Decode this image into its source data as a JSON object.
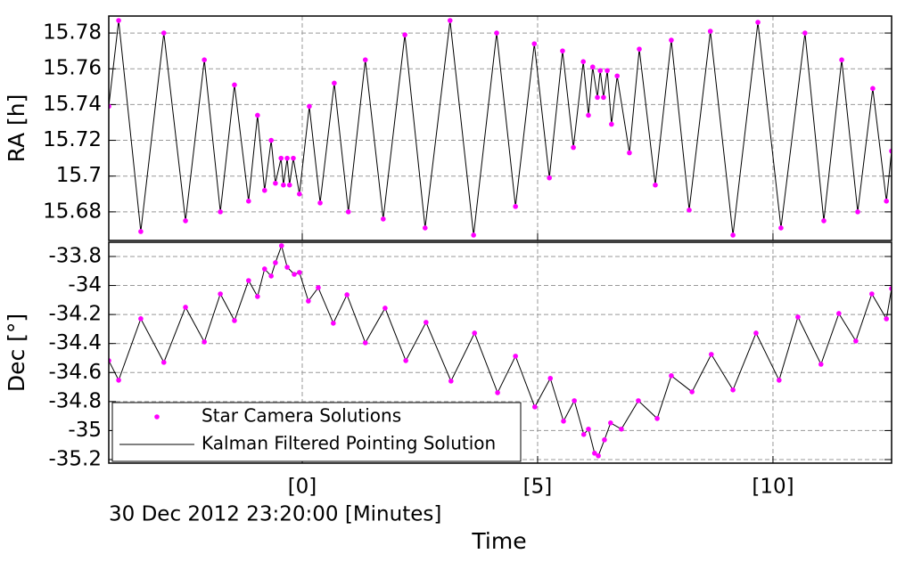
{
  "chart_data": [
    {
      "type": "line",
      "ylabel": "RA [h]",
      "x": [
        -4.11,
        -3.9,
        -3.43,
        -2.94,
        -2.48,
        -2.08,
        -1.74,
        -1.44,
        -1.14,
        -0.95,
        -0.8,
        -0.66,
        -0.57,
        -0.45,
        -0.4,
        -0.32,
        -0.27,
        -0.19,
        -0.06,
        0.15,
        0.38,
        0.68,
        0.98,
        1.34,
        1.72,
        2.18,
        2.61,
        3.14,
        3.64,
        4.13,
        4.53,
        4.93,
        5.25,
        5.53,
        5.76,
        5.97,
        6.08,
        6.17,
        6.27,
        6.33,
        6.4,
        6.48,
        6.57,
        6.69,
        6.95,
        7.16,
        7.5,
        7.84,
        8.22,
        8.67,
        9.15,
        9.68,
        10.17,
        10.68,
        11.08,
        11.46,
        11.8,
        12.12,
        12.41,
        12.52
      ],
      "series": [
        {
          "color": "#ff00ff",
          "style": "markers",
          "values": [
            15.739,
            15.787,
            15.669,
            15.78,
            15.675,
            15.765,
            15.68,
            15.751,
            15.686,
            15.734,
            15.692,
            15.72,
            15.696,
            15.71,
            15.695,
            15.71,
            15.695,
            15.71,
            15.69,
            15.739,
            15.685,
            15.752,
            15.68,
            15.765,
            15.676,
            15.779,
            15.671,
            15.787,
            15.667,
            15.78,
            15.683,
            15.774,
            15.699,
            15.77,
            15.716,
            15.764,
            15.734,
            15.761,
            15.744,
            15.759,
            15.744,
            15.759,
            15.729,
            15.756,
            15.713,
            15.771,
            15.695,
            15.776,
            15.681,
            15.781,
            15.667,
            15.786,
            15.671,
            15.78,
            15.675,
            15.765,
            15.68,
            15.749,
            15.686,
            15.714
          ]
        },
        {
          "color": "#000000",
          "style": "line",
          "values": [
            15.739,
            15.787,
            15.669,
            15.78,
            15.675,
            15.765,
            15.68,
            15.751,
            15.686,
            15.734,
            15.692,
            15.72,
            15.696,
            15.71,
            15.695,
            15.71,
            15.695,
            15.71,
            15.69,
            15.739,
            15.685,
            15.752,
            15.68,
            15.765,
            15.676,
            15.779,
            15.671,
            15.787,
            15.667,
            15.78,
            15.683,
            15.774,
            15.699,
            15.77,
            15.716,
            15.764,
            15.734,
            15.761,
            15.744,
            15.759,
            15.744,
            15.759,
            15.729,
            15.756,
            15.713,
            15.771,
            15.695,
            15.776,
            15.681,
            15.781,
            15.667,
            15.786,
            15.671,
            15.78,
            15.675,
            15.765,
            15.68,
            15.749,
            15.686,
            15.714
          ]
        }
      ],
      "xlim": [
        -4.11,
        12.52
      ],
      "xticks": [
        0,
        5,
        10
      ],
      "ylim": [
        15.664,
        15.7895
      ],
      "yticks": [
        15.68,
        15.7,
        15.72,
        15.74,
        15.76,
        15.78
      ],
      "grid": true
    },
    {
      "type": "line",
      "ylabel": "Dec [°]",
      "xlabel": "Time",
      "x_offset_label": "30 Dec 2012 23:20:00 [Minutes]",
      "x": [
        -4.11,
        -3.9,
        -3.43,
        -2.94,
        -2.48,
        -2.08,
        -1.74,
        -1.44,
        -1.14,
        -0.95,
        -0.8,
        -0.66,
        -0.57,
        -0.44,
        -0.32,
        -0.17,
        -0.06,
        0.13,
        0.34,
        0.66,
        0.95,
        1.34,
        1.76,
        2.2,
        2.63,
        3.16,
        3.66,
        4.15,
        4.53,
        4.94,
        5.27,
        5.55,
        5.78,
        5.98,
        6.08,
        6.21,
        6.29,
        6.42,
        6.55,
        6.78,
        7.14,
        7.54,
        7.84,
        8.28,
        8.69,
        9.15,
        9.64,
        10.13,
        10.53,
        11.02,
        11.4,
        11.76,
        12.1,
        12.41,
        12.52
      ],
      "series": [
        {
          "name": "Star Camera Solutions",
          "color": "#ff00ff",
          "style": "markers",
          "values": [
            -34.518,
            -34.653,
            -34.229,
            -34.53,
            -34.15,
            -34.389,
            -34.058,
            -34.242,
            -33.966,
            -34.076,
            -33.886,
            -33.935,
            -33.843,
            -33.726,
            -33.874,
            -33.923,
            -33.91,
            -34.107,
            -34.015,
            -34.26,
            -34.064,
            -34.395,
            -34.156,
            -34.518,
            -34.254,
            -34.659,
            -34.328,
            -34.739,
            -34.487,
            -34.837,
            -34.64,
            -34.935,
            -34.794,
            -35.027,
            -34.99,
            -35.156,
            -35.174,
            -35.064,
            -34.947,
            -34.99,
            -34.794,
            -34.917,
            -34.622,
            -34.733,
            -34.475,
            -34.72,
            -34.328,
            -34.653,
            -34.217,
            -34.543,
            -34.193,
            -34.383,
            -34.058,
            -34.23,
            -34.021
          ]
        },
        {
          "name": "Kalman Filtered Pointing Solution",
          "color": "#000000",
          "style": "line",
          "values": [
            -34.518,
            -34.653,
            -34.229,
            -34.53,
            -34.15,
            -34.389,
            -34.058,
            -34.242,
            -33.966,
            -34.076,
            -33.886,
            -33.935,
            -33.843,
            -33.726,
            -33.874,
            -33.923,
            -33.91,
            -34.107,
            -34.015,
            -34.26,
            -34.064,
            -34.395,
            -34.156,
            -34.518,
            -34.254,
            -34.659,
            -34.328,
            -34.739,
            -34.487,
            -34.837,
            -34.64,
            -34.935,
            -34.794,
            -35.027,
            -34.99,
            -35.156,
            -35.174,
            -35.064,
            -34.947,
            -34.99,
            -34.794,
            -34.917,
            -34.622,
            -34.733,
            -34.475,
            -34.72,
            -34.328,
            -34.653,
            -34.217,
            -34.543,
            -34.193,
            -34.383,
            -34.058,
            -34.23,
            -34.021
          ]
        }
      ],
      "xlim": [
        -4.11,
        12.52
      ],
      "xticks": [
        {
          "value": 0,
          "label": "[0]"
        },
        {
          "value": 5,
          "label": "[5]"
        },
        {
          "value": 10,
          "label": "[10]"
        }
      ],
      "ylim": [
        -35.2245,
        -33.702
      ],
      "yticks": [
        -35.2,
        -35,
        -34.8,
        -34.6,
        -34.4,
        -34.2,
        -34,
        -33.8
      ],
      "grid": true,
      "legend": "lower left"
    }
  ]
}
